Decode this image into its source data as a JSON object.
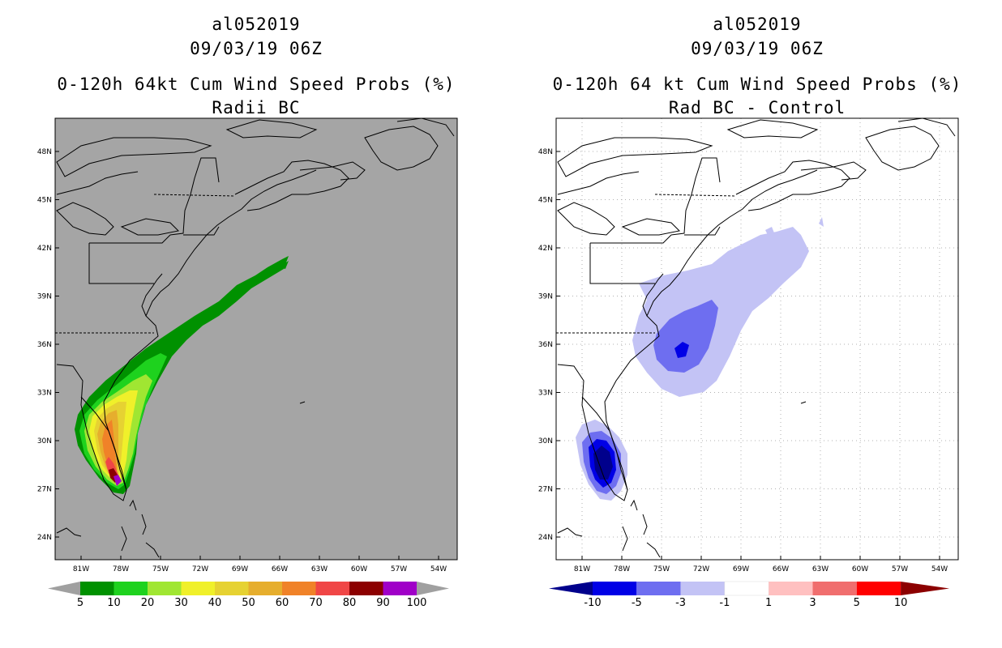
{
  "left": {
    "title1": "al052019",
    "title2": "09/03/19 06Z",
    "title3": "0-120h 64kt Cum Wind Speed Probs (%)",
    "title4": "Radii BC",
    "colorbar": {
      "labels": [
        "5",
        "10",
        "20",
        "30",
        "40",
        "50",
        "60",
        "70",
        "80",
        "90",
        "100"
      ],
      "colors": [
        "#009100",
        "#1ed21e",
        "#a0e632",
        "#f0f02a",
        "#e6d232",
        "#e6ae2d",
        "#f08228",
        "#f04646",
        "#8c0000",
        "#a000c8"
      ],
      "end_color": "#a0a0a0"
    }
  },
  "right": {
    "title1": "al052019",
    "title2": "09/03/19 06Z",
    "title3": "0-120h 64 kt Cum Wind Speed Probs (%)",
    "title4": "Rad BC - Control",
    "colorbar": {
      "labels": [
        "-10",
        "-5",
        "-3",
        "-1",
        "1",
        "3",
        "5",
        "10"
      ],
      "colors": [
        "#0000e6",
        "#6e6ef0",
        "#c3c3f5",
        "#ffffff",
        "#ffc0c0",
        "#f06e6e",
        "#ff0000"
      ],
      "low_color": "#00008c",
      "high_color": "#8c0000"
    }
  },
  "axes": {
    "lat_labels": [
      "48N",
      "45N",
      "42N",
      "39N",
      "36N",
      "33N",
      "30N",
      "27N",
      "24N"
    ],
    "lon_labels": [
      "81W",
      "78W",
      "75W",
      "72W",
      "69W",
      "66W",
      "63W",
      "60W",
      "57W",
      "54W"
    ]
  },
  "colors": {
    "ocean_left": "#a5a5a5",
    "ocean_right": "#ffffff",
    "coast": "#000000",
    "grid": "#b0b0b0"
  }
}
